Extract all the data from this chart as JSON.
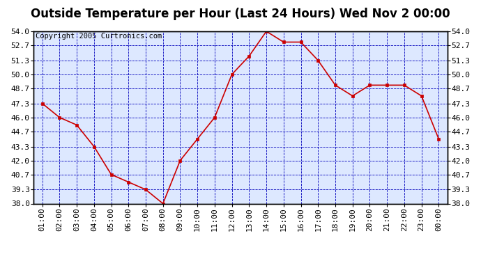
{
  "title": "Outside Temperature per Hour (Last 24 Hours) Wed Nov 2 00:00",
  "copyright": "Copyright 2005 Curtronics.com",
  "hours": [
    "01:00",
    "02:00",
    "03:00",
    "04:00",
    "05:00",
    "06:00",
    "07:00",
    "08:00",
    "09:00",
    "10:00",
    "11:00",
    "12:00",
    "13:00",
    "14:00",
    "15:00",
    "16:00",
    "17:00",
    "18:00",
    "19:00",
    "20:00",
    "21:00",
    "22:00",
    "23:00",
    "00:00"
  ],
  "temps": [
    47.3,
    46.0,
    45.3,
    43.3,
    40.7,
    40.0,
    39.3,
    38.0,
    42.0,
    44.0,
    46.0,
    50.0,
    51.7,
    54.0,
    53.0,
    53.0,
    51.3,
    49.0,
    48.0,
    49.0,
    49.0,
    49.0,
    48.0,
    44.0
  ],
  "fig_bg_color": "#ffffff",
  "plot_bg_color": "#dde8ff",
  "line_color": "#cc0000",
  "marker_color": "#cc0000",
  "grid_color": "#0000bb",
  "title_color": "#000000",
  "border_color": "#000000",
  "ylim": [
    38.0,
    54.0
  ],
  "yticks": [
    38.0,
    39.3,
    40.7,
    42.0,
    43.3,
    44.7,
    46.0,
    47.3,
    48.7,
    50.0,
    51.3,
    52.7,
    54.0
  ],
  "title_fontsize": 12,
  "copyright_fontsize": 7.5,
  "tick_fontsize": 8,
  "figsize": [
    6.9,
    3.75
  ],
  "dpi": 100
}
